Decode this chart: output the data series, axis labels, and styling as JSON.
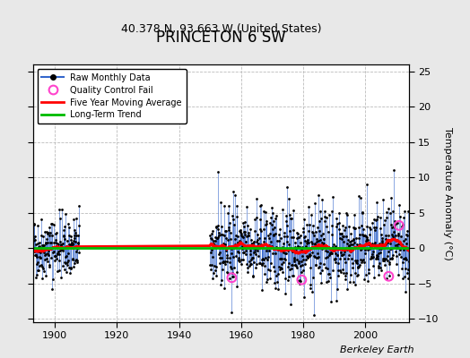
{
  "title": "PRINCETON 6 SW",
  "subtitle": "40.378 N, 93.663 W (United States)",
  "ylabel": "Temperature Anomaly (°C)",
  "credit": "Berkeley Earth",
  "xlim": [
    1893,
    2014
  ],
  "ylim": [
    -10.5,
    26
  ],
  "yticks": [
    -10,
    -5,
    0,
    5,
    10,
    15,
    20,
    25
  ],
  "xticks": [
    1900,
    1920,
    1940,
    1960,
    1980,
    2000
  ],
  "seed": 42,
  "early_start": 1893,
  "early_end": 1907,
  "late_start": 1950,
  "late_end": 2013,
  "bg_color": "#e8e8e8",
  "plot_bg": "#ffffff",
  "raw_color": "#3366cc",
  "raw_dot_color": "#000000",
  "qc_color": "#ff44cc",
  "ma_color": "#ff0000",
  "trend_color": "#00bb00",
  "title_fontsize": 12,
  "subtitle_fontsize": 9,
  "tick_fontsize": 8,
  "ylabel_fontsize": 8,
  "legend_fontsize": 7,
  "credit_fontsize": 8,
  "qc_points_t": [
    1957.0,
    1979.5,
    2007.5,
    2010.8
  ],
  "qc_points_v": [
    -4.2,
    -4.5,
    -4.0,
    3.2
  ]
}
